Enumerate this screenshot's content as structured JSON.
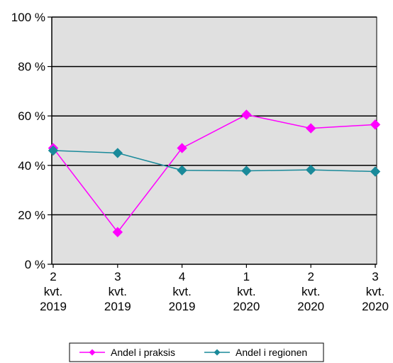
{
  "chart_data": {
    "type": "line",
    "categories": [
      [
        "2",
        "kvt.",
        "2019"
      ],
      [
        "3",
        "kvt.",
        "2019"
      ],
      [
        "4",
        "kvt.",
        "2019"
      ],
      [
        "1",
        "kvt.",
        "2020"
      ],
      [
        "2",
        "kvt.",
        "2020"
      ],
      [
        "3",
        "kvt.",
        "2020"
      ]
    ],
    "series": [
      {
        "name": "Andel i praksis",
        "values": [
          47,
          13,
          47,
          60.5,
          55,
          56.5
        ],
        "color": "#ff00ff",
        "marker": "diamond"
      },
      {
        "name": "Andel i regionen",
        "values": [
          46,
          45,
          38,
          37.8,
          38.2,
          37.5
        ],
        "color": "#1a8a9a",
        "marker": "diamond"
      }
    ],
    "yticks": [
      "0 %",
      "20 %",
      "40 %",
      "60 %",
      "80 %",
      "100 %"
    ],
    "ylim": [
      0,
      100
    ],
    "grid": true,
    "plot_background": "#e0e0e0",
    "legend_position": "bottom"
  }
}
